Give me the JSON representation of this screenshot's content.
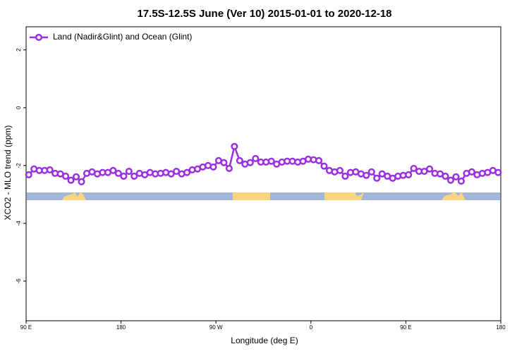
{
  "chart_data": {
    "type": "line",
    "title": "17.5S-12.5S June (Ver 10)   2015-01-01 to 2020-12-18",
    "x_label": "Longitude (deg E)",
    "y_label": "XCO2 - MLO trend (ppm)",
    "xlim": [
      90,
      540
    ],
    "ylim": [
      -7.37,
      2.8
    ],
    "xticks": [
      {
        "value": 90,
        "label": "90 E"
      },
      180,
      {
        "value": 270,
        "label": "90 W"
      },
      {
        "value": 360,
        "label": "0"
      },
      {
        "value": 450,
        "label": "90 E"
      },
      {
        "value": 540,
        "label": "180"
      }
    ],
    "yticks": [
      2,
      0,
      -2,
      -4,
      -6
    ],
    "legend": "top-left",
    "series": [
      {
        "name": "Land (Nadir&Glint) and Ocean (Glint)",
        "color": "#9b30e0",
        "x": [
          92.5,
          97.5,
          102.5,
          107.5,
          112.5,
          117.5,
          122.5,
          127.5,
          132.5,
          137.5,
          142.5,
          147.5,
          152.5,
          157.5,
          162.5,
          167.5,
          172.5,
          177.5,
          182.5,
          187.5,
          192.5,
          197.5,
          202.5,
          207.5,
          212.5,
          217.5,
          222.5,
          227.5,
          232.5,
          237.5,
          242.5,
          247.5,
          252.5,
          257.5,
          262.5,
          267.5,
          272.5,
          277.5,
          282.5,
          287.5,
          292.5,
          297.5,
          302.5,
          307.5,
          312.5,
          317.5,
          322.5,
          327.5,
          332.5,
          337.5,
          342.5,
          347.5,
          352.5,
          357.5,
          362.5,
          367.5,
          372.5,
          377.5,
          382.5,
          387.5,
          392.5,
          397.5,
          402.5,
          407.5,
          412.5,
          417.5,
          422.5,
          427.5,
          432.5,
          437.5,
          442.5,
          447.5,
          452.5,
          457.5,
          462.5,
          467.5,
          472.5,
          477.5,
          482.5,
          487.5,
          492.5,
          497.5,
          502.5,
          507.5,
          512.5,
          517.5,
          522.5,
          527.5,
          532.5,
          537.5
        ],
        "values": [
          -2.32,
          -2.12,
          -2.17,
          -2.17,
          -2.15,
          -2.27,
          -2.29,
          -2.37,
          -2.51,
          -2.39,
          -2.56,
          -2.27,
          -2.22,
          -2.29,
          -2.24,
          -2.24,
          -2.17,
          -2.27,
          -2.37,
          -2.2,
          -2.37,
          -2.27,
          -2.32,
          -2.24,
          -2.29,
          -2.27,
          -2.24,
          -2.29,
          -2.2,
          -2.29,
          -2.24,
          -2.15,
          -2.12,
          -2.05,
          -2.0,
          -2.05,
          -1.83,
          -1.9,
          -2.1,
          -1.34,
          -1.83,
          -1.95,
          -1.9,
          -1.76,
          -1.88,
          -1.88,
          -1.85,
          -1.95,
          -1.88,
          -1.85,
          -1.85,
          -1.88,
          -1.85,
          -1.78,
          -1.8,
          -1.83,
          -2.02,
          -2.17,
          -2.22,
          -2.17,
          -2.37,
          -2.24,
          -2.22,
          -2.29,
          -2.34,
          -2.22,
          -2.44,
          -2.29,
          -2.37,
          -2.44,
          -2.37,
          -2.34,
          -2.32,
          -2.1,
          -2.2,
          -2.2,
          -2.12,
          -2.27,
          -2.29,
          -2.37,
          -2.51,
          -2.39,
          -2.54,
          -2.27,
          -2.22,
          -2.32,
          -2.27,
          -2.24,
          -2.17,
          -2.24
        ]
      }
    ]
  }
}
